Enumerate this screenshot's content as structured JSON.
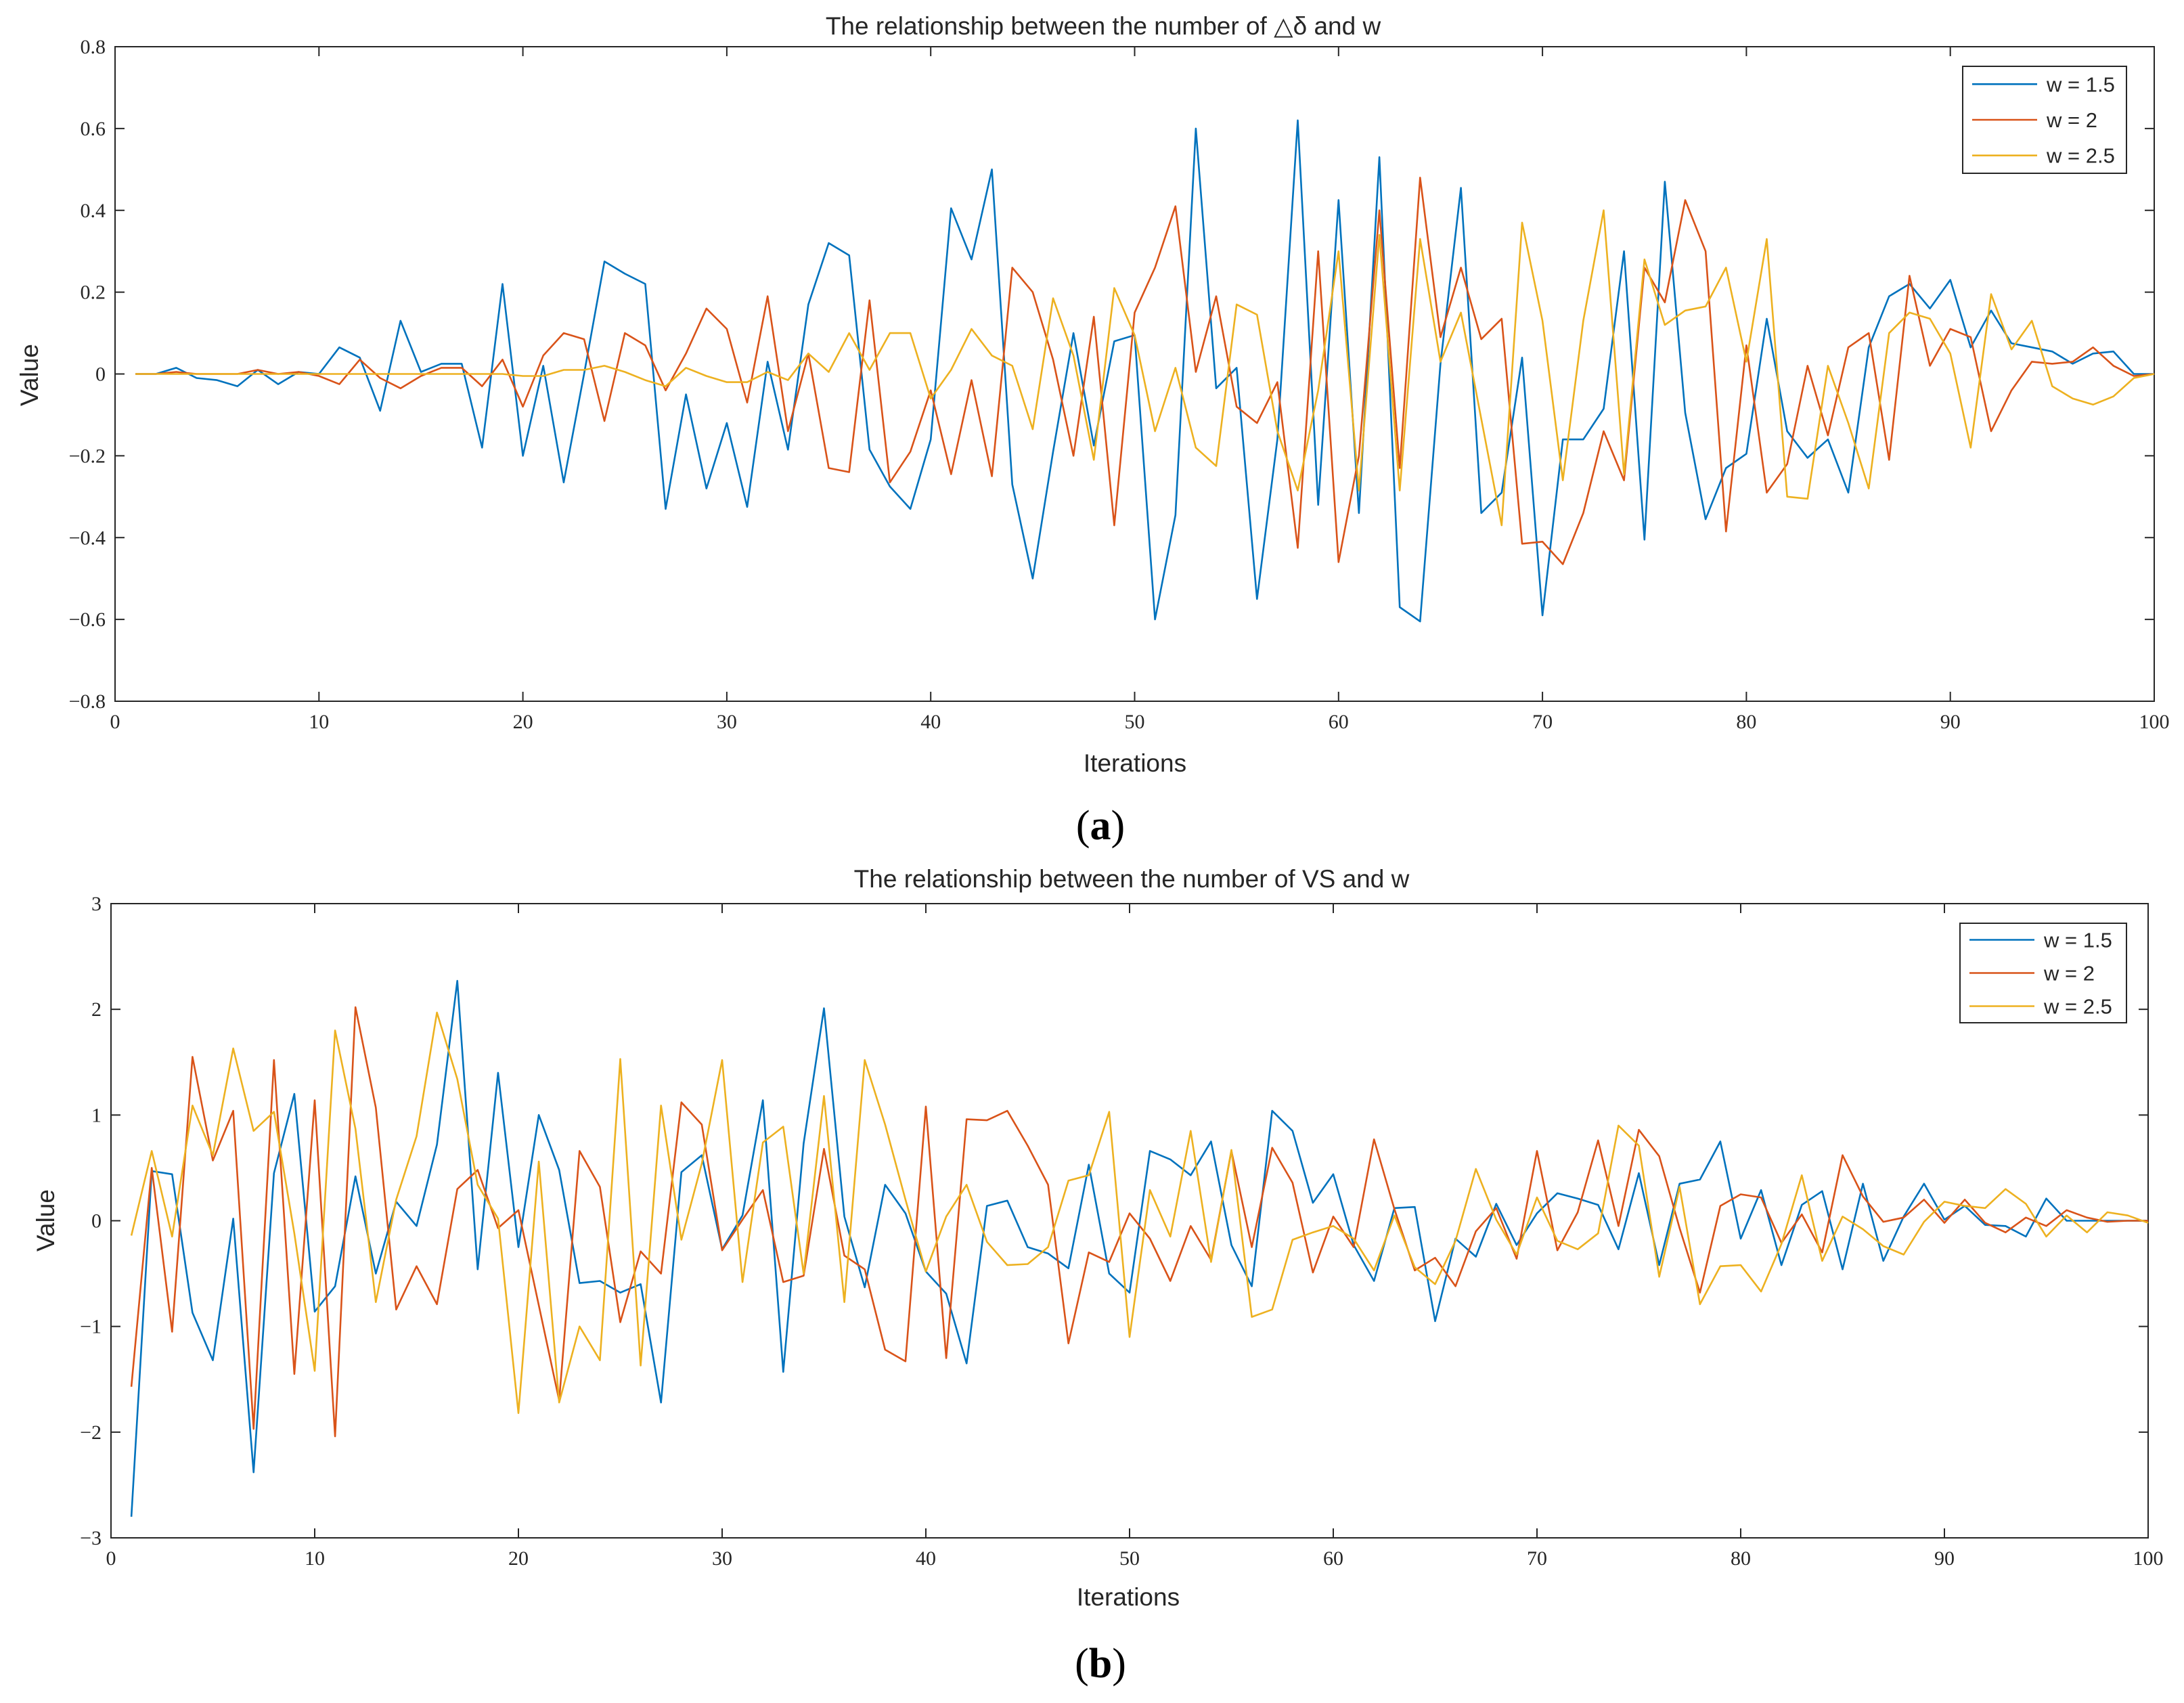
{
  "chart_data": [
    {
      "type": "line",
      "caption": "a",
      "title": "The relationship between the number of △δ and w",
      "xlabel": "Iterations",
      "ylabel": "Value",
      "xlim": [
        0,
        100
      ],
      "ylim": [
        -0.8,
        0.8
      ],
      "xticks": [
        0,
        10,
        20,
        30,
        40,
        50,
        60,
        70,
        80,
        90,
        100
      ],
      "yticks": [
        -0.8,
        -0.6,
        -0.4,
        -0.2,
        0,
        0.2,
        0.4,
        0.6,
        0.8
      ],
      "ytick_labels": [
        "−0.8",
        "−0.6",
        "−0.4",
        "−0.2",
        "0",
        "0.2",
        "0.4",
        "0.6",
        "0.8"
      ],
      "grid": false,
      "legend_position": "top-right",
      "x": [
        1,
        2,
        3,
        4,
        5,
        6,
        7,
        8,
        9,
        10,
        11,
        12,
        13,
        14,
        15,
        16,
        17,
        18,
        19,
        20,
        21,
        22,
        23,
        24,
        25,
        26,
        27,
        28,
        29,
        30,
        31,
        32,
        33,
        34,
        35,
        36,
        37,
        38,
        39,
        40,
        41,
        42,
        43,
        44,
        45,
        46,
        47,
        48,
        49,
        50,
        51,
        52,
        53,
        54,
        55,
        56,
        57,
        58,
        59,
        60,
        61,
        62,
        63,
        64,
        65,
        66,
        67,
        68,
        69,
        70,
        71,
        72,
        73,
        74,
        75,
        76,
        77,
        78,
        79,
        80,
        81,
        82,
        83,
        84,
        85,
        86,
        87,
        88,
        89,
        90,
        91,
        92,
        93,
        94,
        95,
        96,
        97,
        98,
        99,
        100
      ],
      "series": [
        {
          "name": "w = 1.5",
          "color": "#0072BD",
          "values": [
            0,
            0,
            0.015,
            -0.01,
            -0.015,
            -0.03,
            0.01,
            -0.025,
            0.005,
            0,
            0.065,
            0.04,
            -0.09,
            0.13,
            0.005,
            0.025,
            0.025,
            -0.18,
            0.22,
            -0.2,
            0.02,
            -0.265,
            0,
            0.275,
            0.245,
            0.22,
            -0.33,
            -0.05,
            -0.28,
            -0.12,
            -0.325,
            0.03,
            -0.185,
            0.17,
            0.32,
            0.29,
            -0.185,
            -0.275,
            -0.33,
            -0.16,
            0.405,
            0.28,
            0.5,
            -0.27,
            -0.5,
            -0.19,
            0.1,
            -0.175,
            0.08,
            0.095,
            -0.6,
            -0.345,
            0.6,
            -0.035,
            0.015,
            -0.55,
            -0.16,
            0.62,
            -0.32,
            0.425,
            -0.34,
            0.53,
            -0.57,
            -0.605,
            0.025,
            0.455,
            -0.34,
            -0.29,
            0.04,
            -0.59,
            -0.16,
            -0.16,
            -0.085,
            0.3,
            -0.405,
            0.47,
            -0.095,
            -0.355,
            -0.23,
            -0.195,
            0.135,
            -0.14,
            -0.205,
            -0.16,
            -0.29,
            0.065,
            0.19,
            0.22,
            0.16,
            0.23,
            0.065,
            0.155,
            0.075,
            0.065,
            0.055,
            0.025,
            0.05,
            0.055,
            0,
            0
          ]
        },
        {
          "name": "w = 2",
          "color": "#D95319",
          "values": [
            0,
            0,
            0.005,
            0,
            0,
            0,
            0.01,
            0,
            0.005,
            -0.005,
            -0.025,
            0.035,
            -0.01,
            -0.035,
            -0.005,
            0.015,
            0.015,
            -0.03,
            0.035,
            -0.08,
            0.045,
            0.1,
            0.085,
            -0.115,
            0.1,
            0.07,
            -0.04,
            0.05,
            0.16,
            0.11,
            -0.07,
            0.19,
            -0.14,
            0.05,
            -0.23,
            -0.24,
            0.18,
            -0.265,
            -0.19,
            -0.04,
            -0.245,
            -0.015,
            -0.25,
            0.26,
            0.2,
            0.035,
            -0.2,
            0.14,
            -0.37,
            0.15,
            0.26,
            0.41,
            0.005,
            0.19,
            -0.08,
            -0.12,
            -0.02,
            -0.425,
            0.3,
            -0.46,
            -0.2,
            0.4,
            -0.23,
            0.48,
            0.09,
            0.26,
            0.085,
            0.135,
            -0.415,
            -0.41,
            -0.465,
            -0.34,
            -0.14,
            -0.26,
            0.26,
            0.175,
            0.425,
            0.3,
            -0.385,
            0.07,
            -0.29,
            -0.22,
            0.02,
            -0.15,
            0.065,
            0.1,
            -0.21,
            0.24,
            0.02,
            0.11,
            0.09,
            -0.14,
            -0.04,
            0.03,
            0.025,
            0.03,
            0.065,
            0.02,
            -0.005,
            0
          ]
        },
        {
          "name": "w = 2.5",
          "color": "#EDB120",
          "values": [
            0,
            0,
            0,
            0,
            0,
            0,
            0,
            0,
            0,
            0,
            0,
            0,
            0,
            0,
            0,
            0,
            0,
            0,
            0,
            -0.005,
            -0.005,
            0.01,
            0.01,
            0.02,
            0.005,
            -0.015,
            -0.03,
            0.015,
            -0.005,
            -0.02,
            -0.02,
            0.005,
            -0.015,
            0.05,
            0.005,
            0.1,
            0.01,
            0.1,
            0.1,
            -0.06,
            0.01,
            0.11,
            0.045,
            0.02,
            -0.135,
            0.185,
            0.045,
            -0.21,
            0.21,
            0.095,
            -0.14,
            0.015,
            -0.18,
            -0.225,
            0.17,
            0.145,
            -0.14,
            -0.285,
            -0.04,
            0.3,
            -0.285,
            0.34,
            -0.285,
            0.33,
            0.03,
            0.15,
            -0.11,
            -0.37,
            0.37,
            0.13,
            -0.26,
            0.13,
            0.4,
            -0.245,
            0.28,
            0.12,
            0.155,
            0.165,
            0.26,
            0.03,
            0.33,
            -0.3,
            -0.305,
            0.02,
            -0.12,
            -0.28,
            0.1,
            0.15,
            0.135,
            0.05,
            -0.18,
            0.195,
            0.06,
            0.13,
            -0.03,
            -0.06,
            -0.075,
            -0.055,
            -0.01,
            0
          ]
        }
      ]
    },
    {
      "type": "line",
      "caption": "b",
      "title": "The relationship between the number of VS and w",
      "xlabel": "Iterations",
      "ylabel": "Value",
      "xlim": [
        0,
        100
      ],
      "ylim": [
        -3,
        3
      ],
      "xticks": [
        0,
        10,
        20,
        30,
        40,
        50,
        60,
        70,
        80,
        90,
        100
      ],
      "yticks": [
        -3,
        -2,
        -1,
        0,
        1,
        2,
        3
      ],
      "ytick_labels": [
        "−3",
        "−2",
        "−1",
        "0",
        "1",
        "2",
        "3"
      ],
      "grid": false,
      "legend_position": "top-right",
      "x": [
        1,
        2,
        3,
        4,
        5,
        6,
        7,
        8,
        9,
        10,
        11,
        12,
        13,
        14,
        15,
        16,
        17,
        18,
        19,
        20,
        21,
        22,
        23,
        24,
        25,
        26,
        27,
        28,
        29,
        30,
        31,
        32,
        33,
        34,
        35,
        36,
        37,
        38,
        39,
        40,
        41,
        42,
        43,
        44,
        45,
        46,
        47,
        48,
        49,
        50,
        51,
        52,
        53,
        54,
        55,
        56,
        57,
        58,
        59,
        60,
        61,
        62,
        63,
        64,
        65,
        66,
        67,
        68,
        69,
        70,
        71,
        72,
        73,
        74,
        75,
        76,
        77,
        78,
        79,
        80,
        81,
        82,
        83,
        84,
        85,
        86,
        87,
        88,
        89,
        90,
        91,
        92,
        93,
        94,
        95,
        96,
        97,
        98,
        99,
        100
      ],
      "series": [
        {
          "name": "w = 1.5",
          "color": "#0072BD",
          "values": [
            -2.8,
            0.47,
            0.44,
            -0.87,
            -1.32,
            0.02,
            -2.38,
            0.45,
            1.2,
            -0.86,
            -0.62,
            0.42,
            -0.5,
            0.18,
            -0.05,
            0.72,
            2.27,
            -0.46,
            1.4,
            -0.25,
            1,
            0.48,
            -0.59,
            -0.57,
            -0.68,
            -0.6,
            -1.72,
            0.46,
            0.62,
            -0.27,
            0.05,
            1.14,
            -1.43,
            0.73,
            2.01,
            0.04,
            -0.63,
            0.34,
            0.07,
            -0.48,
            -0.69,
            -1.35,
            0.14,
            0.19,
            -0.25,
            -0.31,
            -0.45,
            0.53,
            -0.5,
            -0.68,
            0.66,
            0.58,
            0.43,
            0.75,
            -0.23,
            -0.62,
            1.04,
            0.85,
            0.17,
            0.44,
            -0.23,
            -0.57,
            0.12,
            0.13,
            -0.95,
            -0.17,
            -0.34,
            0.16,
            -0.23,
            0.07,
            0.26,
            0.21,
            0.15,
            -0.27,
            0.45,
            -0.42,
            0.35,
            0.39,
            0.75,
            -0.17,
            0.29,
            -0.42,
            0.15,
            0.28,
            -0.46,
            0.35,
            -0.38,
            0.04,
            0.35,
            0.01,
            0.14,
            -0.04,
            -0.05,
            -0.15,
            0.21,
            0,
            0,
            0,
            0,
            0
          ]
        },
        {
          "name": "w = 2",
          "color": "#D95319",
          "values": [
            -1.57,
            0.5,
            -1.05,
            1.55,
            0.57,
            1.04,
            -1.97,
            1.52,
            -1.45,
            1.14,
            -2.04,
            2.02,
            1.07,
            -0.84,
            -0.43,
            -0.79,
            0.3,
            0.48,
            -0.07,
            0.1,
            -0.8,
            -1.7,
            0.66,
            0.32,
            -0.96,
            -0.29,
            -0.5,
            1.12,
            0.91,
            -0.28,
            0.01,
            0.29,
            -0.58,
            -0.52,
            0.68,
            -0.33,
            -0.46,
            -1.22,
            -1.33,
            1.08,
            -1.3,
            0.96,
            0.95,
            1.04,
            0.71,
            0.34,
            -1.16,
            -0.3,
            -0.39,
            0.07,
            -0.17,
            -0.57,
            -0.05,
            -0.37,
            0.66,
            -0.25,
            0.69,
            0.36,
            -0.49,
            0.04,
            -0.25,
            0.77,
            0.11,
            -0.47,
            -0.35,
            -0.62,
            -0.1,
            0.12,
            -0.36,
            0.66,
            -0.28,
            0.08,
            0.76,
            -0.05,
            0.86,
            0.61,
            -0.07,
            -0.68,
            0.14,
            0.25,
            0.22,
            -0.21,
            0.06,
            -0.3,
            0.62,
            0.23,
            -0.01,
            0.03,
            0.2,
            -0.02,
            0.2,
            -0.02,
            -0.11,
            0.03,
            -0.05,
            0.1,
            0.03,
            -0.01,
            0,
            0
          ]
        },
        {
          "name": "w = 2.5",
          "color": "#EDB120",
          "values": [
            -0.14,
            0.66,
            -0.15,
            1.09,
            0.62,
            1.63,
            0.85,
            1.03,
            -0.12,
            -1.42,
            1.8,
            0.87,
            -0.77,
            0.2,
            0.8,
            1.97,
            1.34,
            0.34,
            0.02,
            -1.82,
            0.56,
            -1.72,
            -1,
            -1.32,
            1.53,
            -1.37,
            1.09,
            -0.18,
            0.54,
            1.52,
            -0.58,
            0.74,
            0.89,
            -0.5,
            1.18,
            -0.77,
            1.52,
            0.91,
            0.2,
            -0.48,
            0.04,
            0.34,
            -0.2,
            -0.42,
            -0.41,
            -0.25,
            0.38,
            0.43,
            1.03,
            -1.1,
            0.29,
            -0.15,
            0.85,
            -0.39,
            0.67,
            -0.91,
            -0.84,
            -0.18,
            -0.11,
            -0.05,
            -0.17,
            -0.47,
            0.05,
            -0.44,
            -0.6,
            -0.19,
            0.49,
            0.01,
            -0.32,
            0.22,
            -0.19,
            -0.27,
            -0.12,
            0.9,
            0.71,
            -0.53,
            0.32,
            -0.79,
            -0.43,
            -0.42,
            -0.67,
            -0.22,
            0.43,
            -0.38,
            0.04,
            -0.08,
            -0.24,
            -0.32,
            -0.01,
            0.18,
            0.14,
            0.12,
            0.3,
            0.16,
            -0.15,
            0.05,
            -0.11,
            0.08,
            0.05,
            -0.02
          ]
        }
      ]
    }
  ]
}
